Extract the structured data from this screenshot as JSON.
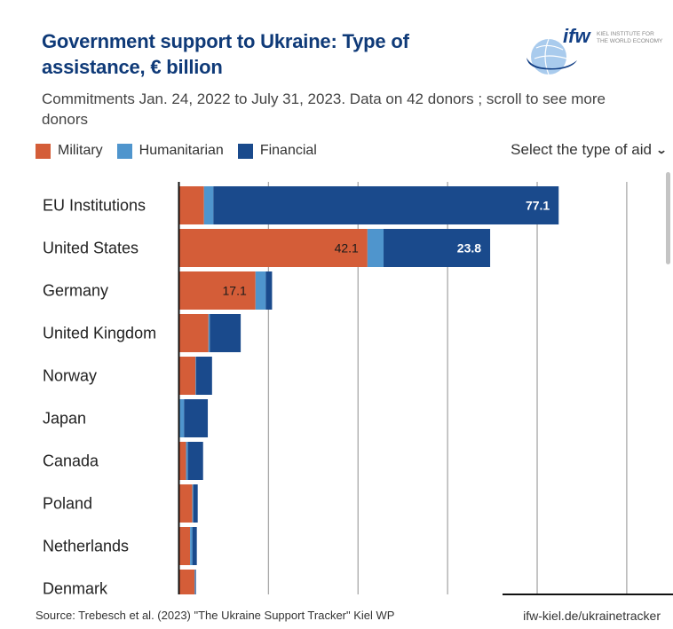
{
  "header": {
    "title": "Government support to Ukraine:  Type of assistance, € billion",
    "subtitle": "Commitments Jan. 24, 2022 to July 31, 2023. Data on 42 donors ; scroll to see more donors",
    "logo": {
      "mark": "ifw",
      "line1": "KIEL INSTITUTE FOR",
      "line2": "THE WORLD ECONOMY",
      "icon": "globe-icon"
    }
  },
  "legend": [
    {
      "label": "Military",
      "color": "#d45d38"
    },
    {
      "label": "Humanitarian",
      "color": "#4f95cd"
    },
    {
      "label": "Financial",
      "color": "#1a4a8c"
    }
  ],
  "dropdown": {
    "label": "Select the type of aid",
    "icon": "chevron-down-icon"
  },
  "footer": {
    "source": "Source: Trebesch et al. (2023) \"The Ukraine Support Tracker\" Kiel WP",
    "site": "ifw-kiel.de/ukrainetracker"
  },
  "chart_data": {
    "type": "bar",
    "orientation": "horizontal",
    "stacked": true,
    "title": "Government support to Ukraine:  Type of assistance, € billion",
    "xlabel": "",
    "ylabel": "",
    "xlim": [
      0,
      110
    ],
    "gridlines_at": [
      20,
      40,
      60,
      80,
      100
    ],
    "grid": true,
    "legend_position": "top-left",
    "categories": [
      "EU Institutions",
      "United States",
      "Germany",
      "United Kingdom",
      "Norway",
      "Japan",
      "Canada",
      "Poland",
      "Netherlands",
      "Denmark"
    ],
    "series": [
      {
        "name": "Military",
        "color": "#d45d38",
        "values": [
          5.6,
          42.1,
          17.1,
          6.6,
          3.7,
          0.05,
          1.6,
          3.0,
          2.5,
          3.5
        ]
      },
      {
        "name": "Humanitarian",
        "color": "#4f95cd",
        "values": [
          2.1,
          3.6,
          2.3,
          0.3,
          0.1,
          1.1,
          0.4,
          0.2,
          0.5,
          0.1
        ]
      },
      {
        "name": "Financial",
        "color": "#1a4a8c",
        "values": [
          77.1,
          23.8,
          1.4,
          6.9,
          3.6,
          5.3,
          3.4,
          1.0,
          1.0,
          0.2
        ]
      }
    ],
    "data_labels": [
      {
        "category": "EU Institutions",
        "series": "Financial",
        "text": "77.1"
      },
      {
        "category": "United States",
        "series": "Military",
        "text": "42.1"
      },
      {
        "category": "United States",
        "series": "Financial",
        "text": "23.8"
      },
      {
        "category": "Germany",
        "series": "Military",
        "text": "17.1"
      }
    ]
  }
}
